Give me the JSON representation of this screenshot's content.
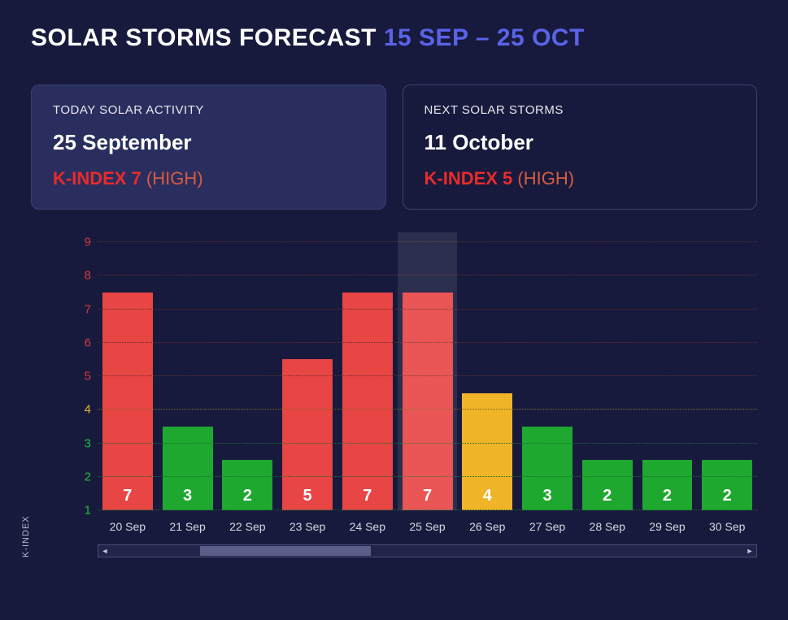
{
  "header": {
    "title_prefix": "SOLAR STORMS FORECAST",
    "date_range": "15 SEP – 25 OCT",
    "range_color": "#5a63e8"
  },
  "cards": {
    "today": {
      "label": "TODAY SOLAR ACTIVITY",
      "date": "25 September",
      "kindex_label": "K-INDEX 7",
      "severity": "(HIGH)",
      "kindex_color": "#e92b2b",
      "severity_color": "#d85a42",
      "bg": "#2a2e5e",
      "border": "#3a3e6d"
    },
    "next": {
      "label": "NEXT SOLAR STORMS",
      "date": "11 October",
      "kindex_label": "K-INDEX 5",
      "severity": "(HIGH)",
      "kindex_color": "#e92b2b",
      "severity_color": "#d85a42",
      "bg": "transparent",
      "border": "#3a3e6d"
    }
  },
  "chart": {
    "type": "bar",
    "y_axis_title": "K-INDEX",
    "y_min": 1,
    "y_max": 9,
    "y_ticks": [
      {
        "v": 1,
        "color": "#1fbf3a"
      },
      {
        "v": 2,
        "color": "#1fbf3a"
      },
      {
        "v": 3,
        "color": "#1fbf3a"
      },
      {
        "v": 4,
        "color": "#e6b32e"
      },
      {
        "v": 5,
        "color": "#d23b3b"
      },
      {
        "v": 6,
        "color": "#d23b3b"
      },
      {
        "v": 7,
        "color": "#d23b3b"
      },
      {
        "v": 8,
        "color": "#d23b3b"
      },
      {
        "v": 9,
        "color": "#d23b3b"
      }
    ],
    "gridline_colors": {
      "low": "#1a6b2a",
      "mid": "#7a6720",
      "high": "#6b2a2a"
    },
    "bar_colors": {
      "low": "#1fa82f",
      "mid": "#f0b429",
      "high": "#e84545"
    },
    "bar_value_color": "#ffffff",
    "bar_value_fontsize": 20,
    "background_color": "#181a3d",
    "highlight_index": 5,
    "highlight_color": "rgba(255,255,255,0.09)",
    "categories": [
      "20 Sep",
      "21 Sep",
      "22 Sep",
      "23 Sep",
      "24 Sep",
      "25 Sep",
      "26 Sep",
      "27 Sep",
      "28 Sep",
      "29 Sep",
      "30 Sep"
    ],
    "values": [
      7,
      3,
      2,
      5,
      7,
      7,
      4,
      3,
      2,
      2,
      2
    ]
  },
  "scrollbar": {
    "thumb_start_pct": 14,
    "thumb_width_pct": 27,
    "track_bg": "#22244a",
    "thumb_bg": "#5a5d88",
    "border": "#4a4d7a"
  }
}
